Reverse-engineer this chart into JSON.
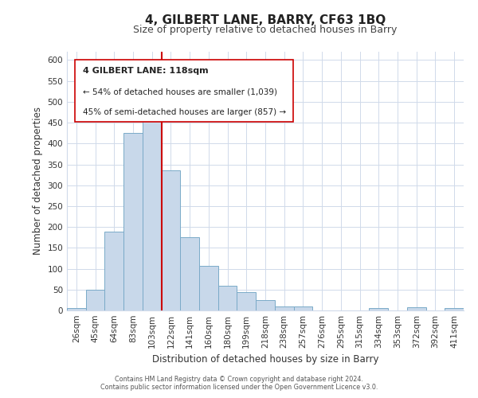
{
  "title": "4, GILBERT LANE, BARRY, CF63 1BQ",
  "subtitle": "Size of property relative to detached houses in Barry",
  "xlabel": "Distribution of detached houses by size in Barry",
  "ylabel": "Number of detached properties",
  "bar_labels": [
    "26sqm",
    "45sqm",
    "64sqm",
    "83sqm",
    "103sqm",
    "122sqm",
    "141sqm",
    "160sqm",
    "180sqm",
    "199sqm",
    "218sqm",
    "238sqm",
    "257sqm",
    "276sqm",
    "295sqm",
    "315sqm",
    "334sqm",
    "353sqm",
    "372sqm",
    "392sqm",
    "411sqm"
  ],
  "bar_values": [
    5,
    50,
    188,
    425,
    475,
    335,
    175,
    107,
    60,
    44,
    25,
    10,
    10,
    0,
    0,
    0,
    5,
    0,
    8,
    0,
    5
  ],
  "bar_color": "#c8d8ea",
  "bar_edge_color": "#7aaac8",
  "vline_color": "#cc0000",
  "ylim": [
    0,
    620
  ],
  "yticks": [
    0,
    50,
    100,
    150,
    200,
    250,
    300,
    350,
    400,
    450,
    500,
    550,
    600
  ],
  "annotation_title": "4 GILBERT LANE: 118sqm",
  "annotation_line1": "← 54% of detached houses are smaller (1,039)",
  "annotation_line2": "45% of semi-detached houses are larger (857) →",
  "footer1": "Contains HM Land Registry data © Crown copyright and database right 2024.",
  "footer2": "Contains public sector information licensed under the Open Government Licence v3.0.",
  "bg_color": "#ffffff",
  "grid_color": "#d0daea",
  "title_fontsize": 11,
  "subtitle_fontsize": 9,
  "axis_label_fontsize": 8.5,
  "tick_fontsize": 7.5,
  "footer_fontsize": 5.8
}
